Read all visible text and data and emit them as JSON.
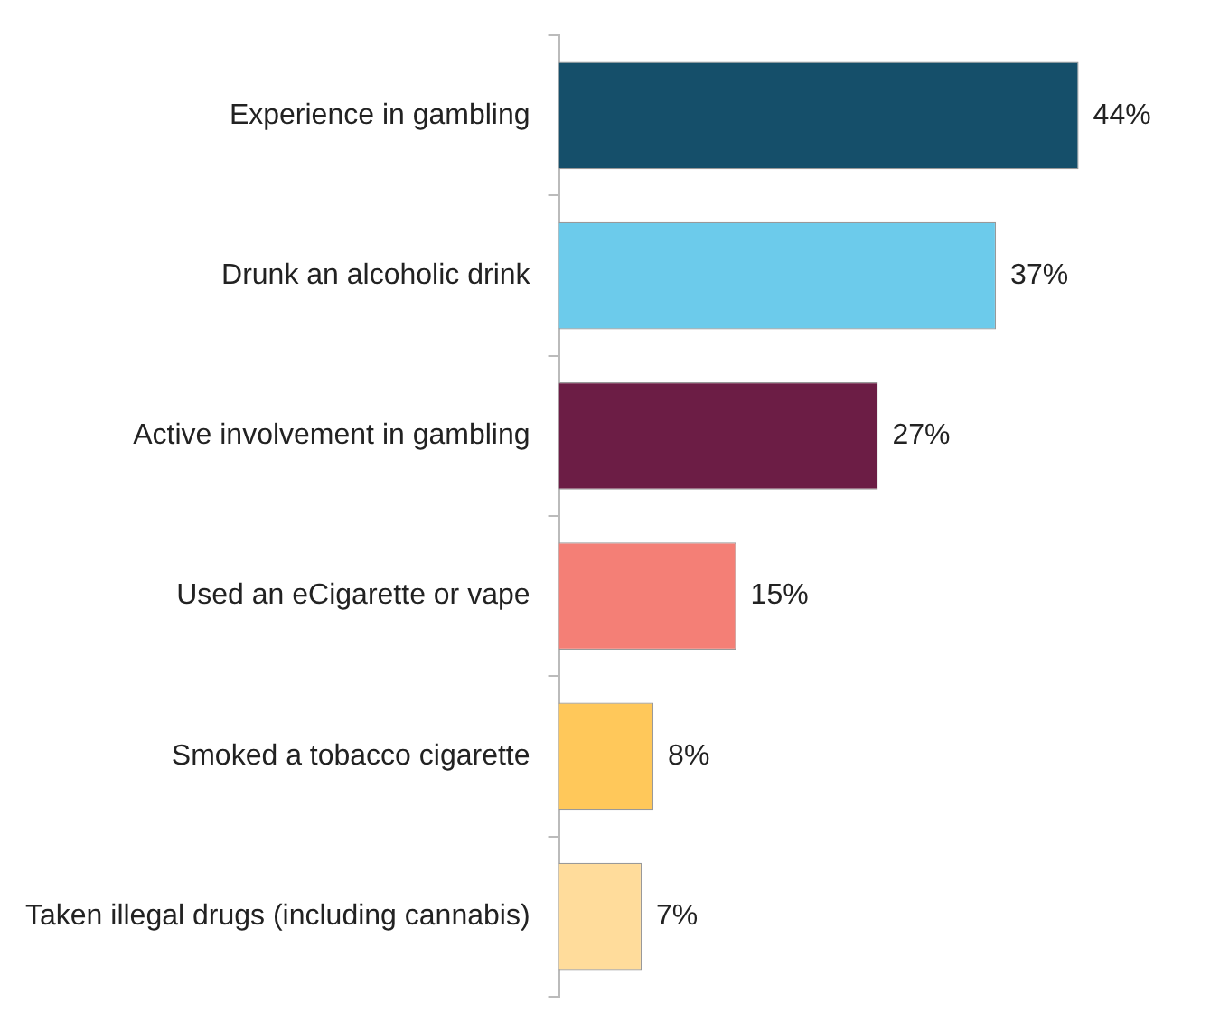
{
  "chart_data": {
    "type": "bar",
    "orientation": "horizontal",
    "categories": [
      "Experience in gambling",
      "Drunk an alcoholic drink",
      "Active involvement in gambling",
      "Used an eCigarette or vape",
      "Smoked a tobacco cigarette",
      "Taken illegal drugs (including cannabis)"
    ],
    "values": [
      44,
      37,
      27,
      15,
      8,
      7
    ],
    "colors": [
      "#154f6a",
      "#6ccbeb",
      "#6c1d45",
      "#f47f76",
      "#ffc85a",
      "#ffdc9b"
    ],
    "value_labels": [
      "44%",
      "37%",
      "27%",
      "15%",
      "8%",
      "7%"
    ],
    "tick_labels": "y",
    "grid": false,
    "legend": false
  }
}
